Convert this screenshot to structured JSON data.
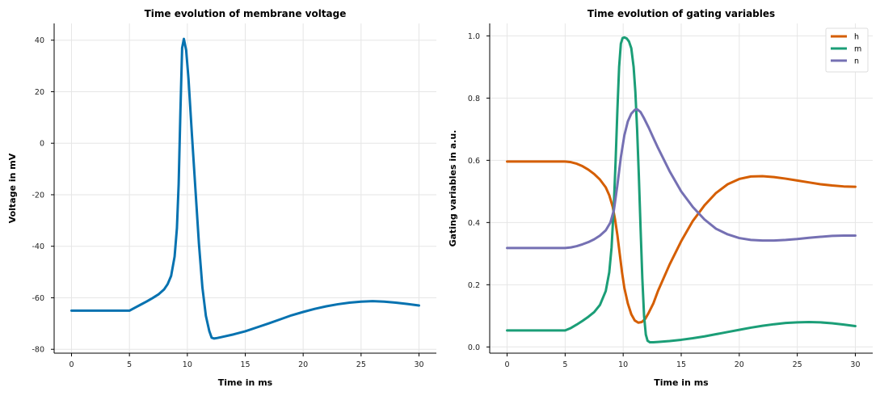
{
  "chart_data": [
    {
      "type": "line",
      "title": "Time evolution of membrane voltage",
      "xlabel": "Time in ms",
      "ylabel": "Voltage in mV",
      "xlim": [
        -1.5,
        31.5
      ],
      "ylim": [
        -81.5,
        46.5
      ],
      "xticks": [
        0,
        5,
        10,
        15,
        20,
        25,
        30
      ],
      "yticks": [
        -80,
        -60,
        -40,
        -20,
        0,
        20,
        40
      ],
      "grid": true,
      "legend": null,
      "series": [
        {
          "color": "#0672b0",
          "x": [
            0,
            5,
            5.5,
            6,
            6.5,
            7,
            7.5,
            8,
            8.3,
            8.6,
            8.9,
            9.1,
            9.25,
            9.4,
            9.55,
            9.7,
            9.9,
            10.1,
            10.4,
            10.7,
            11.0,
            11.3,
            11.6,
            11.9,
            12.1,
            12.3,
            12.6,
            13,
            14,
            15,
            16,
            17,
            18,
            19,
            20,
            21,
            22,
            23,
            24,
            25,
            26,
            27,
            28,
            29,
            30
          ],
          "y": [
            -65,
            -65,
            -63.8,
            -62.6,
            -61.4,
            -60.1,
            -58.7,
            -56.7,
            -54.7,
            -51.5,
            -44,
            -33,
            -16,
            12,
            37,
            40.5,
            36,
            25,
            3,
            -18,
            -39,
            -56,
            -67,
            -73,
            -75.5,
            -75.8,
            -75.6,
            -75.2,
            -74.2,
            -73,
            -71.5,
            -70,
            -68.4,
            -66.8,
            -65.5,
            -64.3,
            -63.3,
            -62.5,
            -61.9,
            -61.5,
            -61.3,
            -61.5,
            -61.9,
            -62.4,
            -63
          ]
        }
      ]
    },
    {
      "type": "line",
      "title": "Time evolution of gating variables",
      "xlabel": "Time in ms",
      "ylabel": "Gating variables in a.u.",
      "xlim": [
        -1.5,
        31.5
      ],
      "ylim": [
        -0.02,
        1.04
      ],
      "xticks": [
        0,
        5,
        10,
        15,
        20,
        25,
        30
      ],
      "yticks": [
        0.0,
        0.2,
        0.4,
        0.6,
        0.8,
        1.0
      ],
      "ytick_labels": [
        "0.0",
        "0.2",
        "0.4",
        "0.6",
        "0.8",
        "1.0"
      ],
      "grid": true,
      "legend": "top-right",
      "series": [
        {
          "name": "h",
          "color": "#d55e00",
          "x": [
            0,
            5,
            5.5,
            6,
            6.5,
            7,
            7.5,
            8,
            8.5,
            8.8,
            9.1,
            9.3,
            9.5,
            9.7,
            9.9,
            10.1,
            10.4,
            10.7,
            11.0,
            11.3,
            11.6,
            11.9,
            12.2,
            12.6,
            13,
            14,
            15,
            16,
            17,
            18,
            19,
            20,
            21,
            22,
            23,
            24,
            25,
            26,
            27,
            28,
            29,
            30
          ],
          "y": [
            0.596,
            0.596,
            0.594,
            0.589,
            0.581,
            0.57,
            0.556,
            0.538,
            0.513,
            0.488,
            0.45,
            0.41,
            0.36,
            0.3,
            0.24,
            0.19,
            0.14,
            0.105,
            0.085,
            0.078,
            0.08,
            0.09,
            0.11,
            0.14,
            0.18,
            0.265,
            0.34,
            0.405,
            0.455,
            0.495,
            0.523,
            0.54,
            0.548,
            0.549,
            0.546,
            0.541,
            0.535,
            0.529,
            0.523,
            0.519,
            0.516,
            0.515
          ]
        },
        {
          "name": "m",
          "color": "#1b9e77",
          "x": [
            0,
            5,
            5.5,
            6,
            6.5,
            7,
            7.5,
            8,
            8.5,
            8.8,
            9.0,
            9.2,
            9.35,
            9.5,
            9.65,
            9.8,
            9.95,
            10.1,
            10.3,
            10.5,
            10.7,
            10.9,
            11.05,
            11.2,
            11.35,
            11.5,
            11.65,
            11.8,
            11.95,
            12.1,
            12.3,
            12.6,
            13,
            14,
            15,
            16,
            17,
            18,
            19,
            20,
            21,
            22,
            23,
            24,
            25,
            26,
            27,
            28,
            29,
            30
          ],
          "y": [
            0.053,
            0.053,
            0.061,
            0.072,
            0.084,
            0.097,
            0.112,
            0.135,
            0.18,
            0.24,
            0.32,
            0.46,
            0.6,
            0.76,
            0.9,
            0.975,
            0.993,
            0.995,
            0.992,
            0.982,
            0.96,
            0.9,
            0.82,
            0.7,
            0.55,
            0.38,
            0.22,
            0.1,
            0.04,
            0.02,
            0.015,
            0.015,
            0.016,
            0.019,
            0.023,
            0.028,
            0.034,
            0.041,
            0.048,
            0.055,
            0.062,
            0.068,
            0.073,
            0.077,
            0.079,
            0.08,
            0.079,
            0.076,
            0.072,
            0.067
          ]
        },
        {
          "name": "n",
          "color": "#7570b3",
          "x": [
            0,
            5,
            5.5,
            6,
            6.5,
            7,
            7.5,
            8,
            8.5,
            8.9,
            9.2,
            9.5,
            9.8,
            10.1,
            10.4,
            10.7,
            11.0,
            11.2,
            11.5,
            11.8,
            12.2,
            12.6,
            13,
            14,
            15,
            16,
            17,
            18,
            19,
            20,
            21,
            22,
            23,
            24,
            25,
            26,
            27,
            28,
            29,
            30
          ],
          "y": [
            0.318,
            0.318,
            0.32,
            0.324,
            0.33,
            0.337,
            0.346,
            0.358,
            0.375,
            0.4,
            0.44,
            0.52,
            0.61,
            0.68,
            0.725,
            0.75,
            0.762,
            0.764,
            0.755,
            0.735,
            0.705,
            0.672,
            0.64,
            0.565,
            0.5,
            0.45,
            0.41,
            0.38,
            0.362,
            0.35,
            0.344,
            0.342,
            0.342,
            0.344,
            0.347,
            0.351,
            0.354,
            0.357,
            0.358,
            0.358
          ]
        }
      ]
    }
  ]
}
